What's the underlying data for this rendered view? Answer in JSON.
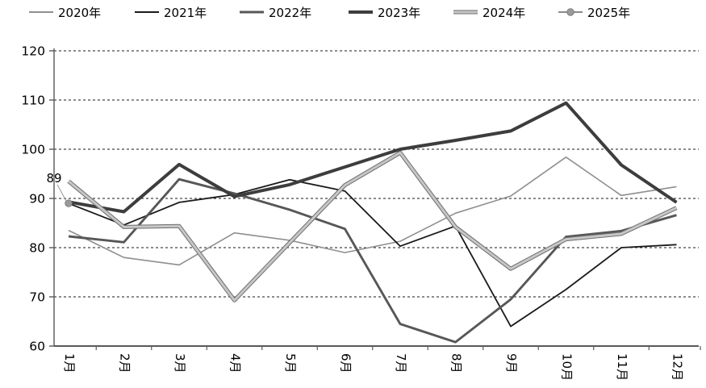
{
  "annotation": {
    "first_point_label": "89"
  },
  "chart_data": {
    "type": "line",
    "title": "",
    "xlabel": "",
    "ylabel": "",
    "ylim": [
      60,
      120
    ],
    "ytick_step": 10,
    "ytick_labels": [
      "120",
      "110",
      "100",
      "90",
      "80",
      "70",
      "60"
    ],
    "grid": "horizontal-dashed",
    "legend_position": "top",
    "categories": [
      "1月",
      "2月",
      "3月",
      "4月",
      "5月",
      "6月",
      "7月",
      "8月",
      "9月",
      "10月",
      "11月",
      "12月"
    ],
    "series": [
      {
        "name": "2020年",
        "color": "#8f8f8f",
        "width": 1.6,
        "values": [
          83.5,
          78,
          76.5,
          83,
          81.5,
          79,
          81.3,
          87,
          90.5,
          98.4,
          90.6,
          92.4
        ]
      },
      {
        "name": "2021年",
        "color": "#1a1a1a",
        "width": 1.8,
        "values": [
          89,
          84.6,
          89.2,
          90.8,
          93.8,
          91.5,
          80.3,
          84.4,
          64,
          71.5,
          80,
          80.6
        ]
      },
      {
        "name": "2022年",
        "color": "#575757",
        "width": 2.9,
        "values": [
          82.3,
          81.1,
          93.9,
          91,
          87.7,
          83.8,
          64.5,
          60.8,
          69.5,
          82.2,
          83.4,
          86.6
        ]
      },
      {
        "name": "2023年",
        "color": "#3d3d3d",
        "width": 4,
        "values": [
          89.3,
          87.3,
          96.9,
          90.4,
          92.8,
          96.4,
          100,
          101.8,
          103.7,
          109.4,
          96.8,
          89.2
        ]
      },
      {
        "name": "2024年",
        "color": "#c6c6c6",
        "width": 3,
        "outline": "#6e6e6e",
        "outline_width": 5,
        "values": [
          93.5,
          84.2,
          84.4,
          69.3,
          81,
          92.7,
          99.3,
          84.2,
          75.7,
          81.7,
          82.8,
          88.1
        ]
      },
      {
        "name": "2025年",
        "color": "#8a8a8a",
        "width": 1.6,
        "marker": true,
        "marker_color": "#9a9a9a",
        "values": [
          89,
          null,
          null,
          null,
          null,
          null,
          null,
          null,
          null,
          null,
          null,
          null
        ]
      }
    ]
  },
  "style_colors": {
    "gridline": "#1a1a1a",
    "axis": "#595959",
    "text": "#000000"
  }
}
